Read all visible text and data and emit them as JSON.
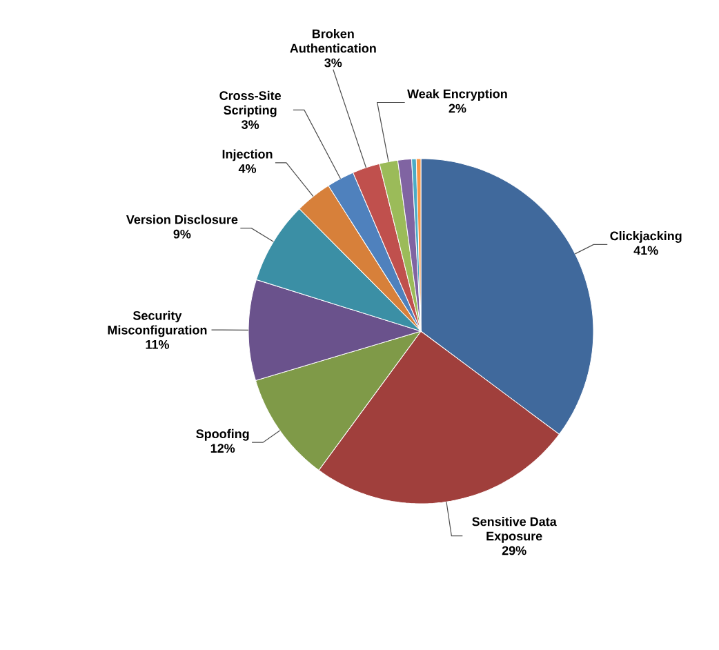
{
  "chart_data": {
    "type": "pie",
    "categories": [
      "Clickjacking",
      "Sensitive Data Exposure",
      "Spoofing",
      "Security Misconfiguration",
      "Version Disclosure",
      "Injection",
      "Cross-Site Scripting",
      "Broken Authentication",
      "Weak Encryption",
      null,
      null,
      null
    ],
    "values": [
      41,
      29,
      12,
      11,
      9,
      4,
      3,
      3,
      2,
      1.5,
      0.5,
      0.5
    ],
    "value_labels": [
      "41%",
      "29%",
      "12%",
      "11%",
      "9%",
      "4%",
      "3%",
      "3%",
      "2%",
      null,
      null,
      null
    ],
    "colors": [
      "#40699c",
      "#a03f3c",
      "#7f9a48",
      "#6a528c",
      "#3b8fa5",
      "#d7803a",
      "#4f81bd",
      "#c0504d",
      "#9bbb59",
      "#8064a2",
      "#4bacc6",
      "#f79646"
    ]
  }
}
